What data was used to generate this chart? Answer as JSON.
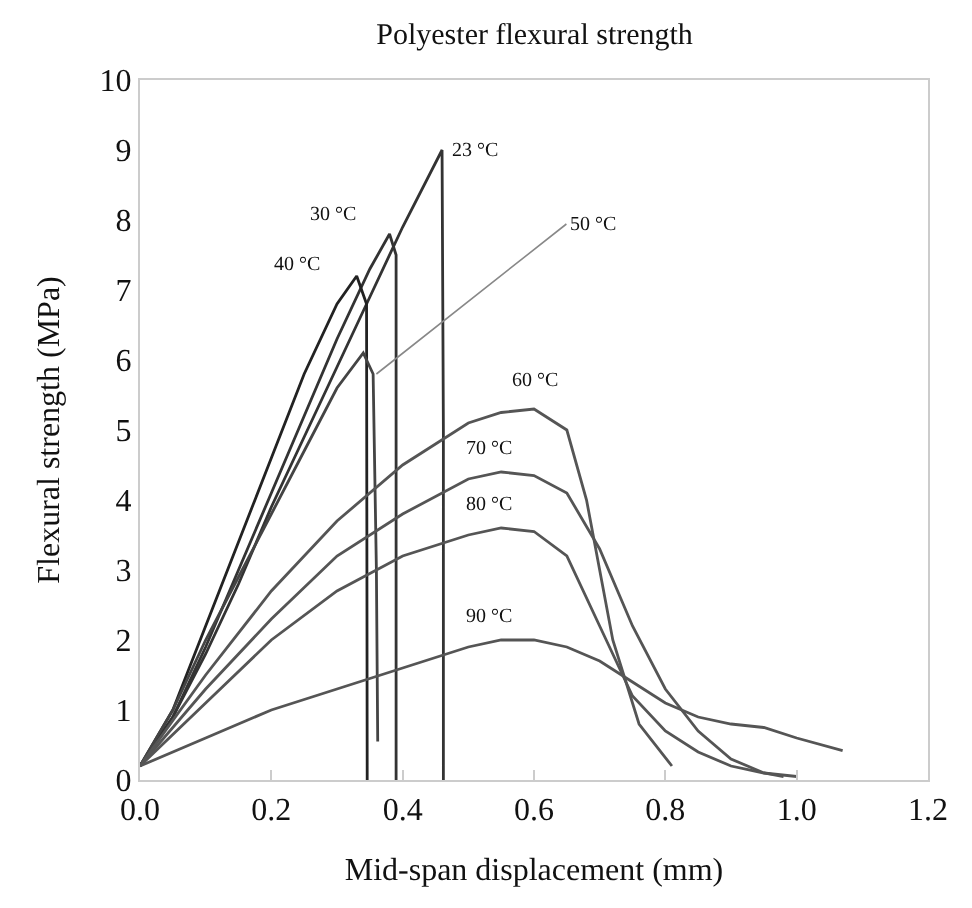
{
  "chart_data": {
    "type": "line",
    "title": "Polyester flexural strength",
    "xlabel": "Mid-span displacement (mm)",
    "ylabel": "Flexural strength (MPa)",
    "xlim": [
      0,
      1.2
    ],
    "xticks": [
      {
        "value": 0,
        "label": "0.0"
      },
      0.2,
      0.4,
      0.6,
      0.8,
      {
        "value": 1,
        "label": "1.0"
      },
      1.2
    ],
    "ylim": [
      0,
      10
    ],
    "yticks": [
      0,
      1,
      2,
      3,
      4,
      5,
      6,
      7,
      8,
      9,
      10
    ],
    "legend": false,
    "marker": "none",
    "line_style": "solid",
    "series": [
      {
        "name": "23 °C",
        "color": "#333333",
        "x": [
          0,
          0.05,
          0.1,
          0.15,
          0.2,
          0.25,
          0.3,
          0.35,
          0.4,
          0.46,
          0.462,
          0.462
        ],
        "values": [
          0.2,
          0.9,
          1.8,
          2.8,
          3.9,
          4.9,
          5.9,
          6.9,
          7.9,
          9.0,
          5.0,
          0
        ]
      },
      {
        "name": "30 °C",
        "color": "#333333",
        "x": [
          0,
          0.05,
          0.1,
          0.15,
          0.2,
          0.25,
          0.3,
          0.35,
          0.38,
          0.39,
          0.39
        ],
        "values": [
          0.2,
          0.9,
          1.9,
          3.0,
          4.1,
          5.2,
          6.3,
          7.3,
          7.8,
          7.5,
          0
        ]
      },
      {
        "name": "40 °C",
        "color": "#222222",
        "x": [
          0,
          0.05,
          0.1,
          0.15,
          0.2,
          0.25,
          0.3,
          0.33,
          0.345,
          0.346
        ],
        "values": [
          0.2,
          1.0,
          2.2,
          3.4,
          4.6,
          5.8,
          6.8,
          7.2,
          6.8,
          0
        ]
      },
      {
        "name": "50 °C",
        "color": "#444444",
        "x": [
          0,
          0.05,
          0.1,
          0.15,
          0.2,
          0.25,
          0.3,
          0.34,
          0.355,
          0.36,
          0.362
        ],
        "values": [
          0.2,
          1.0,
          2.0,
          2.9,
          3.8,
          4.7,
          5.6,
          6.1,
          5.8,
          3.0,
          0.55
        ]
      },
      {
        "name": "60 °C",
        "color": "#555555",
        "x": [
          0,
          0.1,
          0.2,
          0.3,
          0.4,
          0.5,
          0.55,
          0.6,
          0.65,
          0.68,
          0.72,
          0.76,
          0.81
        ],
        "values": [
          0.2,
          1.5,
          2.7,
          3.7,
          4.5,
          5.1,
          5.25,
          5.3,
          5.0,
          4.0,
          2.0,
          0.8,
          0.2
        ]
      },
      {
        "name": "70 °C",
        "color": "#555555",
        "x": [
          0,
          0.1,
          0.2,
          0.3,
          0.4,
          0.5,
          0.55,
          0.6,
          0.65,
          0.7,
          0.75,
          0.8,
          0.85,
          0.9,
          0.95,
          0.98
        ],
        "values": [
          0.2,
          1.3,
          2.3,
          3.2,
          3.8,
          4.3,
          4.4,
          4.35,
          4.1,
          3.3,
          2.2,
          1.3,
          0.7,
          0.3,
          0.1,
          0.05
        ]
      },
      {
        "name": "80 °C",
        "color": "#555555",
        "x": [
          0,
          0.1,
          0.2,
          0.3,
          0.4,
          0.5,
          0.55,
          0.6,
          0.65,
          0.7,
          0.75,
          0.8,
          0.85,
          0.9,
          0.95,
          1.0
        ],
        "values": [
          0.2,
          1.1,
          2.0,
          2.7,
          3.2,
          3.5,
          3.6,
          3.55,
          3.2,
          2.2,
          1.2,
          0.7,
          0.4,
          0.2,
          0.1,
          0.05
        ]
      },
      {
        "name": "90 °C",
        "color": "#555555",
        "x": [
          0,
          0.1,
          0.2,
          0.3,
          0.4,
          0.5,
          0.55,
          0.6,
          0.65,
          0.7,
          0.75,
          0.8,
          0.85,
          0.9,
          0.95,
          1.0,
          1.07
        ],
        "values": [
          0.2,
          0.6,
          1.0,
          1.3,
          1.6,
          1.9,
          2.0,
          2.0,
          1.9,
          1.7,
          1.4,
          1.1,
          0.9,
          0.8,
          0.75,
          0.6,
          0.42
        ]
      }
    ]
  }
}
